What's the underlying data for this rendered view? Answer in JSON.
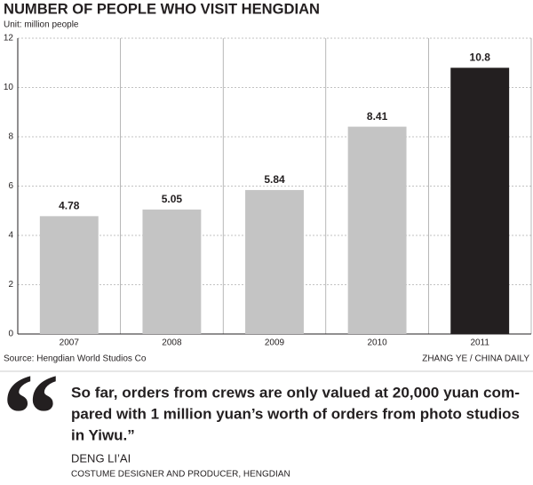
{
  "chart_data": {
    "type": "bar",
    "title": "NUMBER OF PEOPLE WHO VISIT HENGDIAN",
    "subtitle": "Unit: million people",
    "categories": [
      "2007",
      "2008",
      "2009",
      "2010",
      "2011"
    ],
    "values": [
      4.78,
      5.05,
      5.84,
      8.41,
      10.8
    ],
    "colors": [
      "#c4c4c4",
      "#c4c4c4",
      "#c4c4c4",
      "#c4c4c4",
      "#231f20"
    ],
    "ylim": [
      0,
      12
    ],
    "yticks": [
      0,
      2,
      4,
      6,
      8,
      10,
      12
    ],
    "grid": true,
    "source": "Source: Hengdian World Studios Co",
    "credit": "ZHANG YE / CHINA DAILY"
  },
  "quote": {
    "mark": "“",
    "lines": [
      "So far, orders from crews are only valued at 20,000 yuan com-",
      "pared with 1 million yuan’s worth of orders from photo studios",
      "in Yiwu.”"
    ],
    "speaker": "DENG LI’AI",
    "role": "COSTUME DESIGNER AND PRODUCER, HENGDIAN"
  }
}
